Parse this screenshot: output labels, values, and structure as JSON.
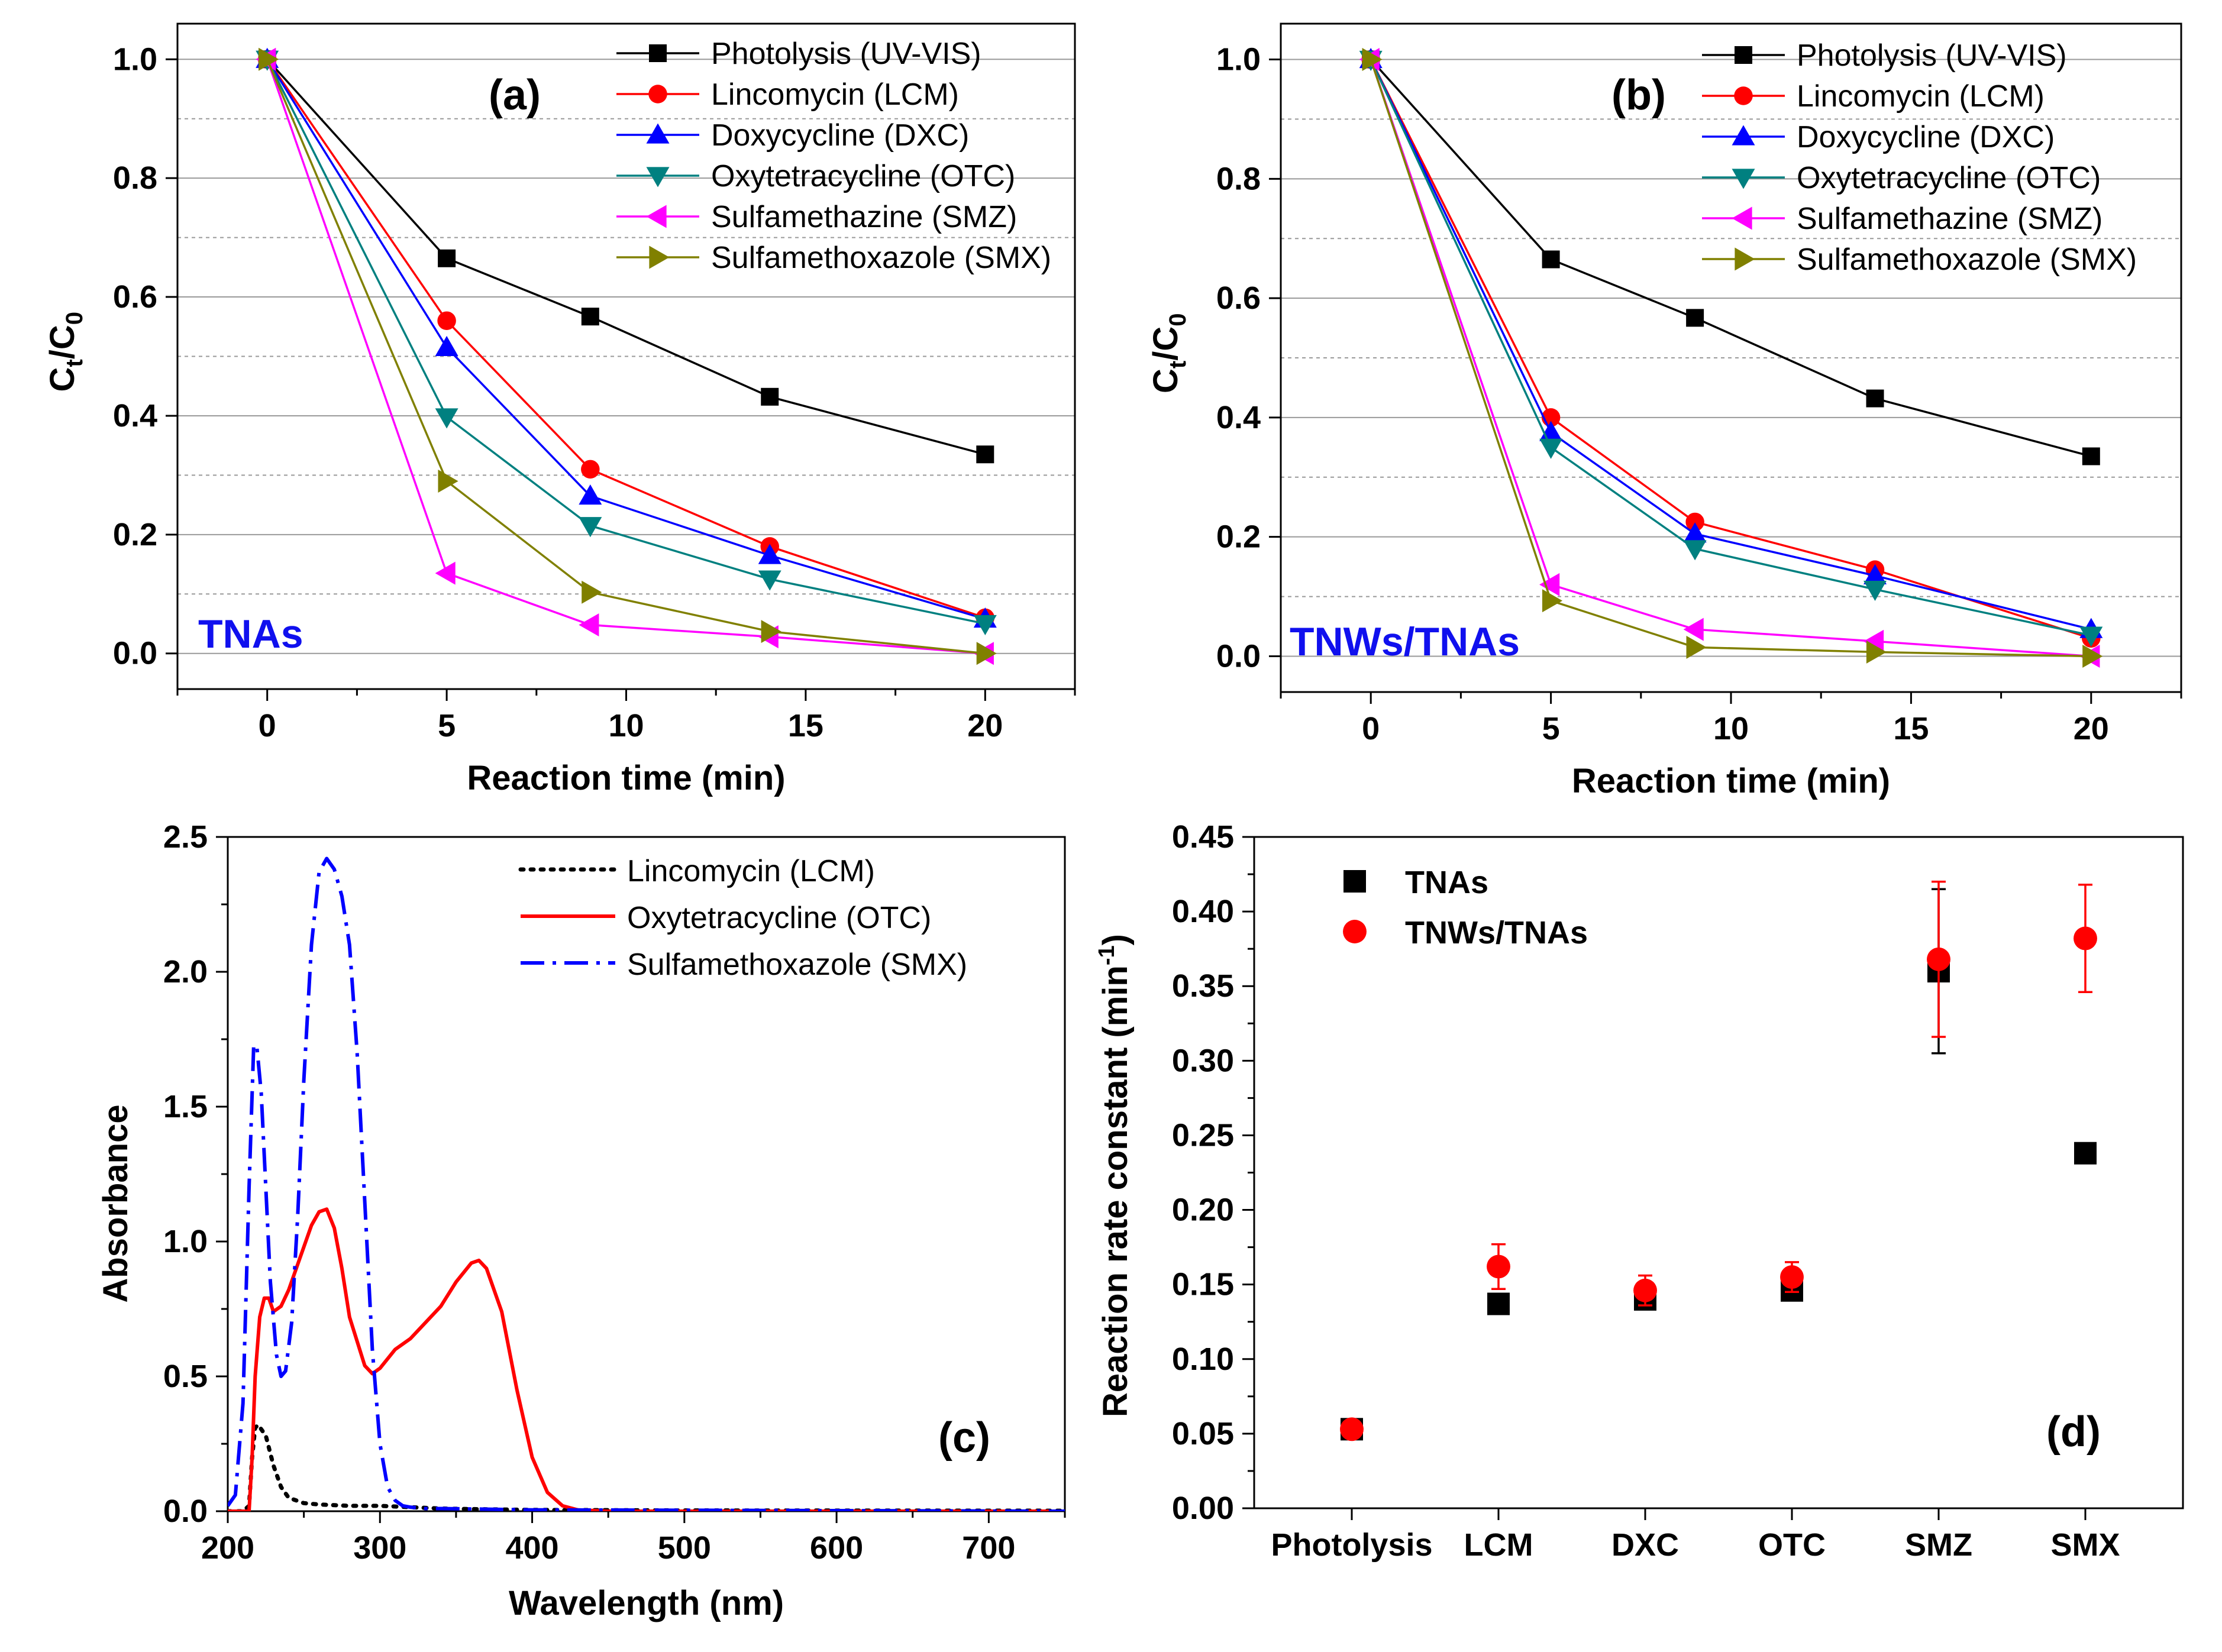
{
  "chart_data": [
    {
      "type": "line",
      "panel": "(a)",
      "sample_label": "TNAs",
      "xlabel": "Reaction time (min)",
      "ylabel": "Ct/C0",
      "ylabel_main": "C",
      "ylabel_sub1": "t",
      "ylabel_slash": "/C",
      "ylabel_sub2": "0",
      "xlim": [
        -2.5,
        22.5
      ],
      "ylim": [
        -0.06,
        1.06
      ],
      "xticks": [
        0,
        5,
        10,
        15,
        20
      ],
      "yticks": [
        0.0,
        0.2,
        0.4,
        0.6,
        0.8,
        1.0
      ],
      "ytick_labels": [
        "0.0",
        "0.2",
        "0.4",
        "0.6",
        "0.8",
        "1.0"
      ],
      "x": [
        0,
        5,
        9,
        14,
        20
      ],
      "series": [
        {
          "name": "Photolysis (UV-VIS)",
          "color": "#000000",
          "marker": "square",
          "values": [
            1.0,
            0.665,
            0.567,
            0.432,
            0.335
          ]
        },
        {
          "name": "Lincomycin (LCM)",
          "color": "#ff0000",
          "marker": "circle",
          "values": [
            1.0,
            0.56,
            0.31,
            0.18,
            0.06
          ]
        },
        {
          "name": "Doxycycline (DXC)",
          "color": "#0000ff",
          "marker": "triangle-up",
          "values": [
            1.0,
            0.515,
            0.265,
            0.165,
            0.058
          ]
        },
        {
          "name": "Oxytetracycline (OTC)",
          "color": "#008080",
          "marker": "triangle-down",
          "values": [
            1.0,
            0.398,
            0.215,
            0.125,
            0.05
          ]
        },
        {
          "name": "Sulfamethazine (SMZ)",
          "color": "#ff00ff",
          "marker": "triangle-left",
          "values": [
            1.0,
            0.135,
            0.048,
            0.028,
            0.0
          ]
        },
        {
          "name": "Sulfamethoxazole (SMX)",
          "color": "#808000",
          "marker": "triangle-right",
          "values": [
            1.0,
            0.29,
            0.103,
            0.037,
            0.0
          ]
        }
      ]
    },
    {
      "type": "line",
      "panel": "(b)",
      "sample_label": "TNWs/TNAs",
      "xlabel": "Reaction time (min)",
      "ylabel": "Ct/C0",
      "ylabel_main": "C",
      "ylabel_sub1": "t",
      "ylabel_slash": "/C",
      "ylabel_sub2": "0",
      "xlim": [
        -2.5,
        22.5
      ],
      "ylim": [
        -0.06,
        1.06
      ],
      "xticks": [
        0,
        5,
        10,
        15,
        20
      ],
      "yticks": [
        0.0,
        0.2,
        0.4,
        0.6,
        0.8,
        1.0
      ],
      "ytick_labels": [
        "0.0",
        "0.2",
        "0.4",
        "0.6",
        "0.8",
        "1.0"
      ],
      "x": [
        0,
        5,
        9,
        14,
        20
      ],
      "series": [
        {
          "name": "Photolysis (UV-VIS)",
          "color": "#000000",
          "marker": "square",
          "values": [
            1.0,
            0.665,
            0.567,
            0.432,
            0.335
          ]
        },
        {
          "name": "Lincomycin (LCM)",
          "color": "#ff0000",
          "marker": "circle",
          "values": [
            1.0,
            0.4,
            0.225,
            0.145,
            0.03
          ]
        },
        {
          "name": "Doxycycline (DXC)",
          "color": "#0000ff",
          "marker": "triangle-up",
          "values": [
            1.0,
            0.375,
            0.205,
            0.135,
            0.045
          ]
        },
        {
          "name": "Oxytetracycline (OTC)",
          "color": "#008080",
          "marker": "triangle-down",
          "values": [
            1.0,
            0.35,
            0.18,
            0.112,
            0.035
          ]
        },
        {
          "name": "Sulfamethazine (SMZ)",
          "color": "#ff00ff",
          "marker": "triangle-left",
          "values": [
            1.0,
            0.12,
            0.045,
            0.025,
            0.0
          ]
        },
        {
          "name": "Sulfamethoxazole (SMX)",
          "color": "#808000",
          "marker": "triangle-right",
          "values": [
            1.0,
            0.093,
            0.015,
            0.007,
            0.0
          ]
        }
      ]
    },
    {
      "type": "line",
      "panel": "(c)",
      "xlabel": "Wavelength (nm)",
      "ylabel": "Absorbance",
      "xlim": [
        200,
        750
      ],
      "ylim": [
        0,
        2.5
      ],
      "xticks": [
        200,
        300,
        400,
        500,
        600,
        700
      ],
      "yticks": [
        0.0,
        0.5,
        1.0,
        1.5,
        2.0,
        2.5
      ],
      "ytick_labels": [
        "0.0",
        "0.5",
        "1.0",
        "1.5",
        "2.0",
        "2.5"
      ],
      "series": [
        {
          "name": "Lincomycin (LCM)",
          "color": "#000000",
          "dash": "dot",
          "x": [
            200,
            205,
            210,
            214,
            216,
            218,
            220,
            225,
            230,
            235,
            240,
            250,
            260,
            280,
            300,
            320,
            340,
            360,
            400,
            500,
            750
          ],
          "y": [
            0,
            0,
            0,
            0.02,
            0.2,
            0.31,
            0.32,
            0.28,
            0.17,
            0.09,
            0.05,
            0.03,
            0.025,
            0.02,
            0.02,
            0.015,
            0.01,
            0.008,
            0.005,
            0.003,
            0.002
          ]
        },
        {
          "name": "Oxytetracycline (OTC)",
          "color": "#ff0000",
          "dash": "solid",
          "x": [
            200,
            214,
            216,
            218,
            221,
            224,
            227,
            230,
            235,
            240,
            245,
            250,
            255,
            260,
            265,
            270,
            275,
            280,
            290,
            295,
            300,
            310,
            320,
            330,
            340,
            350,
            360,
            365,
            370,
            380,
            390,
            400,
            410,
            420,
            430,
            450,
            500,
            750
          ],
          "y": [
            0,
            0,
            0.2,
            0.5,
            0.72,
            0.79,
            0.79,
            0.74,
            0.76,
            0.82,
            0.9,
            0.98,
            1.06,
            1.11,
            1.12,
            1.05,
            0.9,
            0.72,
            0.54,
            0.51,
            0.53,
            0.6,
            0.64,
            0.7,
            0.76,
            0.85,
            0.92,
            0.93,
            0.9,
            0.74,
            0.45,
            0.2,
            0.07,
            0.02,
            0.005,
            0,
            0,
            0
          ]
        },
        {
          "name": "Sulfamethoxazole (SMX)",
          "color": "#0000ff",
          "dash": "dashdot",
          "x": [
            200,
            205,
            210,
            214,
            217,
            219,
            222,
            225,
            228,
            232,
            235,
            238,
            242,
            246,
            250,
            255,
            260,
            265,
            270,
            275,
            280,
            285,
            290,
            295,
            300,
            305,
            310,
            315,
            320,
            330,
            340,
            400,
            750
          ],
          "y": [
            0.02,
            0.06,
            0.4,
            1.2,
            1.72,
            1.73,
            1.55,
            1.2,
            0.85,
            0.58,
            0.5,
            0.52,
            0.7,
            1.1,
            1.6,
            2.1,
            2.37,
            2.42,
            2.38,
            2.28,
            2.1,
            1.7,
            1.15,
            0.6,
            0.25,
            0.09,
            0.04,
            0.02,
            0.015,
            0.01,
            0.01,
            0.005,
            0.0
          ]
        }
      ]
    },
    {
      "type": "scatter",
      "panel": "(d)",
      "xlabel": "",
      "ylabel": "Reaction rate constant (min",
      "ylabel_sup": "-1",
      "ylabel_close": ")",
      "ylim": [
        0,
        0.45
      ],
      "yticks": [
        0.0,
        0.05,
        0.1,
        0.15,
        0.2,
        0.25,
        0.3,
        0.35,
        0.4,
        0.45
      ],
      "ytick_labels": [
        "0.00",
        "0.05",
        "0.10",
        "0.15",
        "0.20",
        "0.25",
        "0.30",
        "0.35",
        "0.40",
        "0.45"
      ],
      "categories": [
        "Photolysis",
        "LCM",
        "DXC",
        "OTC",
        "SMZ",
        "SMX"
      ],
      "series": [
        {
          "name": "TNAs",
          "color": "#000000",
          "marker": "square",
          "values": [
            0.053,
            0.137,
            0.14,
            0.146,
            0.36,
            0.238
          ],
          "errors": [
            0.003,
            0.005,
            0.004,
            0.005,
            0.055,
            0.006
          ]
        },
        {
          "name": "TNWs/TNAs",
          "color": "#ff0000",
          "marker": "circle",
          "values": [
            0.053,
            0.162,
            0.146,
            0.155,
            0.368,
            0.382
          ],
          "errors": [
            0.003,
            0.015,
            0.01,
            0.01,
            0.052,
            0.036
          ]
        }
      ]
    }
  ]
}
